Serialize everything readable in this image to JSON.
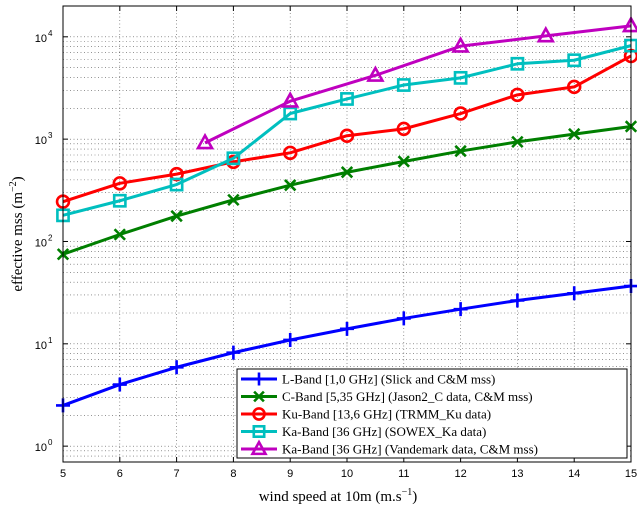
{
  "chart_data": {
    "type": "line",
    "xlabel": "wind speed at 10m (m.s",
    "xlabel_sup": "−1",
    "xlabel_end": ")",
    "ylabel": "effective mss (m",
    "ylabel_sup": "−2",
    "ylabel_end": ")",
    "xlim": [
      5,
      15
    ],
    "ylim": [
      0.7,
      20000
    ],
    "y_scale": "log",
    "grid": true,
    "legend_position": "bottom-right",
    "x_ticks": [
      "5",
      "6",
      "7",
      "8",
      "9",
      "10",
      "11",
      "12",
      "13",
      "14",
      "15"
    ],
    "y_ticks": [
      {
        "value": 1,
        "label": "10",
        "exp": "0"
      },
      {
        "value": 10,
        "label": "10",
        "exp": "1"
      },
      {
        "value": 100,
        "label": "10",
        "exp": "2"
      },
      {
        "value": 1000,
        "label": "10",
        "exp": "3"
      },
      {
        "value": 10000,
        "label": "10",
        "exp": "4"
      }
    ],
    "series": [
      {
        "name": "L-Band [1,0 GHz] (Slick and C&M mss)",
        "color": "#0000ff",
        "marker": "plus",
        "x": [
          5,
          6,
          7,
          8,
          9,
          10,
          11,
          12,
          13,
          14,
          15
        ],
        "values": [
          2.5,
          4.0,
          5.9,
          8.2,
          10.9,
          14.0,
          17.7,
          21.8,
          26.5,
          31.2,
          36.7
        ]
      },
      {
        "name": "C-Band [5,35 GHz] (Jason2_C data, C&M mss)",
        "color": "#007f00",
        "marker": "x",
        "x": [
          5,
          6,
          7,
          8,
          9,
          10,
          11,
          12,
          13,
          14,
          15
        ],
        "values": [
          75,
          117,
          177,
          255,
          355,
          475,
          605,
          765,
          940,
          1120,
          1330
        ]
      },
      {
        "name": "Ku-Band [13,6 GHz] (TRMM_Ku data)",
        "color": "#ff0000",
        "marker": "circle",
        "x": [
          5,
          6,
          7,
          8,
          9,
          10,
          11,
          12,
          13,
          14,
          15
        ],
        "values": [
          245,
          370,
          455,
          600,
          735,
          1080,
          1260,
          1780,
          2710,
          3240,
          6500
        ]
      },
      {
        "name": "Ka-Band [36 GHz] (SOWEX_Ka data)",
        "color": "#00bfbf",
        "marker": "square",
        "x": [
          5,
          6,
          7,
          8,
          9,
          10,
          11,
          12,
          13,
          14,
          15
        ],
        "values": [
          180,
          250,
          360,
          650,
          1780,
          2470,
          3380,
          3970,
          5450,
          5900,
          8200
        ]
      },
      {
        "name": "Ka-Band [36 GHz] (Vandemark data, C&M mss)",
        "color": "#bf00bf",
        "marker": "triangle",
        "x": [
          7.5,
          9,
          10.5,
          12,
          13.5,
          15
        ],
        "values": [
          920,
          2350,
          4200,
          8100,
          10200,
          12800
        ]
      }
    ]
  }
}
